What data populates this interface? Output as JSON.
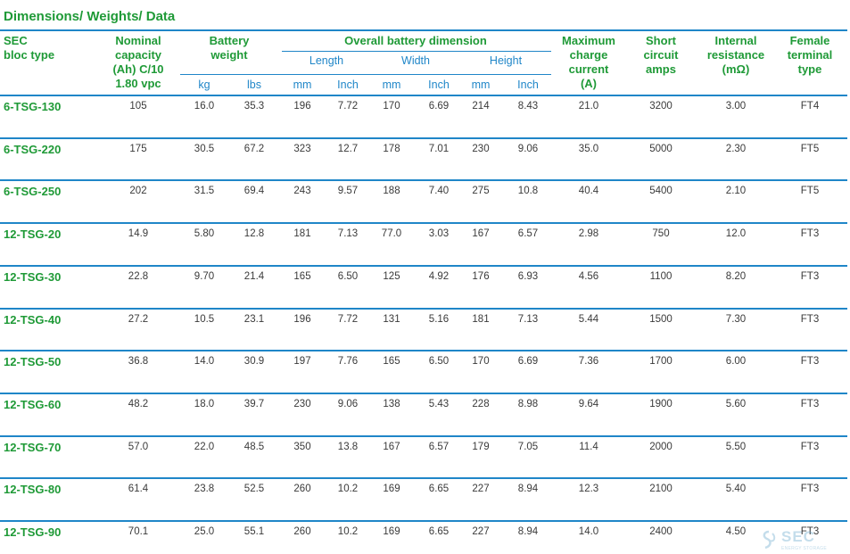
{
  "title": "Dimensions/ Weights/ Data",
  "headers": {
    "type": "SEC\nbloc type",
    "capacity": "Nominal\ncapacity\n(Ah) C/10\n1.80 vpc",
    "weight": "Battery\nweight",
    "overall": "Overall battery dimension",
    "length": "Length",
    "width": "Width",
    "height": "Height",
    "charge": "Maximum\ncharge\ncurrent\n(A)",
    "short": "Short\ncircuit\namps",
    "internal": "Internal\nresistance\n(mΩ)",
    "terminal": "Female\nterminal\ntype"
  },
  "units": [
    "kg",
    "lbs",
    "mm",
    "Inch",
    "mm",
    "Inch",
    "mm",
    "Inch"
  ],
  "rows": [
    {
      "name": "6-TSG-130",
      "values": [
        "105",
        "16.0",
        "35.3",
        "196",
        "7.72",
        "170",
        "6.69",
        "214",
        "8.43",
        "21.0",
        "3200",
        "3.00",
        "FT4"
      ]
    },
    {
      "name": "6-TSG-220",
      "values": [
        "175",
        "30.5",
        "67.2",
        "323",
        "12.7",
        "178",
        "7.01",
        "230",
        "9.06",
        "35.0",
        "5000",
        "2.30",
        "FT5"
      ]
    },
    {
      "name": "6-TSG-250",
      "values": [
        "202",
        "31.5",
        "69.4",
        "243",
        "9.57",
        "188",
        "7.40",
        "275",
        "10.8",
        "40.4",
        "5400",
        "2.10",
        "FT5"
      ]
    },
    {
      "name": "12-TSG-20",
      "values": [
        "14.9",
        "5.80",
        "12.8",
        "181",
        "7.13",
        "77.0",
        "3.03",
        "167",
        "6.57",
        "2.98",
        "750",
        "12.0",
        "FT3"
      ]
    },
    {
      "name": "12-TSG-30",
      "values": [
        "22.8",
        "9.70",
        "21.4",
        "165",
        "6.50",
        "125",
        "4.92",
        "176",
        "6.93",
        "4.56",
        "1100",
        "8.20",
        "FT3"
      ]
    },
    {
      "name": "12-TSG-40",
      "values": [
        "27.2",
        "10.5",
        "23.1",
        "196",
        "7.72",
        "131",
        "5.16",
        "181",
        "7.13",
        "5.44",
        "1500",
        "7.30",
        "FT3"
      ]
    },
    {
      "name": "12-TSG-50",
      "values": [
        "36.8",
        "14.0",
        "30.9",
        "197",
        "7.76",
        "165",
        "6.50",
        "170",
        "6.69",
        "7.36",
        "1700",
        "6.00",
        "FT3"
      ]
    },
    {
      "name": "12-TSG-60",
      "values": [
        "48.2",
        "18.0",
        "39.7",
        "230",
        "9.06",
        "138",
        "5.43",
        "228",
        "8.98",
        "9.64",
        "1900",
        "5.60",
        "FT3"
      ]
    },
    {
      "name": "12-TSG-70",
      "values": [
        "57.0",
        "22.0",
        "48.5",
        "350",
        "13.8",
        "167",
        "6.57",
        "179",
        "7.05",
        "11.4",
        "2000",
        "5.50",
        "FT3"
      ]
    },
    {
      "name": "12-TSG-80",
      "values": [
        "61.4",
        "23.8",
        "52.5",
        "260",
        "10.2",
        "169",
        "6.65",
        "227",
        "8.94",
        "12.3",
        "2100",
        "5.40",
        "FT3"
      ]
    },
    {
      "name": "12-TSG-90",
      "values": [
        "70.1",
        "25.0",
        "55.1",
        "260",
        "10.2",
        "169",
        "6.65",
        "227",
        "8.94",
        "14.0",
        "2400",
        "4.50",
        "FT3"
      ]
    }
  ],
  "watermark": {
    "text": "SEC",
    "sub": "ENERGY STORAGE",
    "icon": "sec-logo-icon"
  },
  "colors": {
    "green": "#1f9a37",
    "blue": "#1f86c8",
    "text": "#3a3a3a"
  }
}
